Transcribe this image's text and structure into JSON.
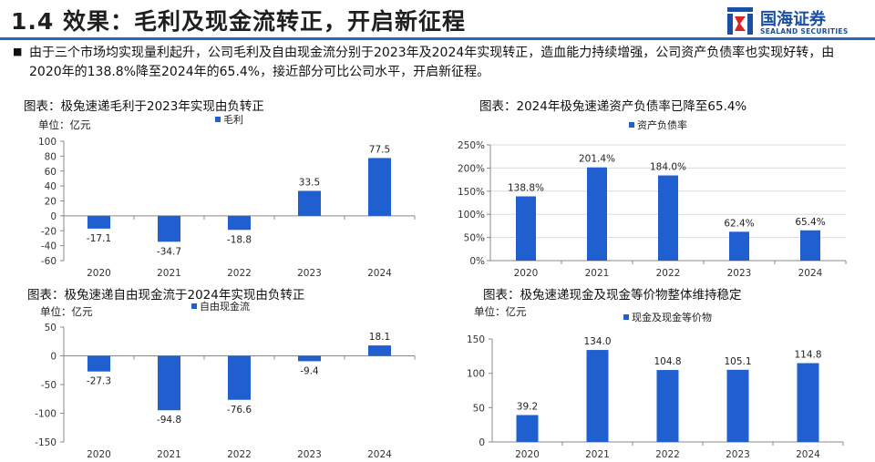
{
  "header": {
    "title": "1.4 效果：毛利及现金流转正，开启新征程",
    "logo_name": "国海证券",
    "logo_en": "SEALAND SECURITIES",
    "accent": "#2a64c6"
  },
  "summary": {
    "text": "由于三个市场均实现量利起升，公司毛利及自由现金流分别于2023年及2024年实现转正，造血能力持续增强，公司资产负债率也实现好转，由2020年的138.8%降至2024年的65.4%，接近部分可比公司水平，开启新征程。"
  },
  "panels": {
    "p1_title": "图表：极兔速递毛利于2023年实现由负转正",
    "p2_title": "图表：2024年极兔速递资产负债率已降至65.4%",
    "p3_title": "图表：极兔速递自由现金流于2024年实现由负转正",
    "p4_title": "图表：极兔速递现金及现金等价物整体维持稳定"
  },
  "chart_data": [
    {
      "id": "c1",
      "type": "bar",
      "unit_label": "单位：亿元",
      "categories": [
        "2020",
        "2021",
        "2022",
        "2023",
        "2024"
      ],
      "series": [
        {
          "name": "毛利",
          "values": [
            -17.1,
            -34.7,
            -18.8,
            33.5,
            77.5
          ]
        }
      ],
      "data_labels": [
        "-17.1",
        "-34.7",
        "-18.8",
        "33.5",
        "77.5"
      ],
      "ylim": [
        -60,
        100
      ],
      "yticks": [
        -60,
        -40,
        -20,
        0,
        20,
        40,
        60,
        80,
        100
      ],
      "tick_labels": [
        "-60",
        "-40",
        "-20",
        "0",
        "20",
        "40",
        "60",
        "80",
        "100"
      ],
      "legend_position": "top",
      "color": "#1f5fcf"
    },
    {
      "id": "c2",
      "type": "bar",
      "unit_label": "",
      "categories": [
        "2020",
        "2021",
        "2022",
        "2023",
        "2024"
      ],
      "series": [
        {
          "name": "资产负债率",
          "values": [
            138.8,
            201.4,
            184.0,
            62.4,
            65.4
          ]
        }
      ],
      "data_labels": [
        "138.8%",
        "201.4%",
        "184.0%",
        "62.4%",
        "65.4%"
      ],
      "ylim": [
        0,
        250
      ],
      "yticks": [
        0,
        50,
        100,
        150,
        200,
        250
      ],
      "tick_labels": [
        "0%",
        "50%",
        "100%",
        "150%",
        "200%",
        "250%"
      ],
      "legend_position": "top",
      "color": "#1f5fcf"
    },
    {
      "id": "c3",
      "type": "bar",
      "unit_label": "单位：亿元",
      "categories": [
        "2020",
        "2021",
        "2022",
        "2023",
        "2024"
      ],
      "series": [
        {
          "name": "自由现金流",
          "values": [
            -27.3,
            -94.8,
            -76.6,
            -9.4,
            18.1
          ]
        }
      ],
      "data_labels": [
        "-27.3",
        "-94.8",
        "-76.6",
        "-9.4",
        "18.1"
      ],
      "ylim": [
        -150,
        50
      ],
      "yticks": [
        -150,
        -100,
        -50,
        0,
        50
      ],
      "tick_labels": [
        "-150",
        "-100",
        "-50",
        "0",
        "50"
      ],
      "legend_position": "top",
      "color": "#1f5fcf"
    },
    {
      "id": "c4",
      "type": "bar",
      "unit_label": "单位：亿元",
      "categories": [
        "2020",
        "2021",
        "2022",
        "2023",
        "2024"
      ],
      "series": [
        {
          "name": "现金及现金等价物",
          "values": [
            39.2,
            134.0,
            104.8,
            105.1,
            114.8
          ]
        }
      ],
      "data_labels": [
        "39.2",
        "134.0",
        "104.8",
        "105.1",
        "114.8"
      ],
      "ylim": [
        0,
        150
      ],
      "yticks": [
        0,
        50,
        100,
        150
      ],
      "tick_labels": [
        "0",
        "50",
        "100",
        "150"
      ],
      "legend_position": "top",
      "color": "#1f5fcf"
    }
  ]
}
